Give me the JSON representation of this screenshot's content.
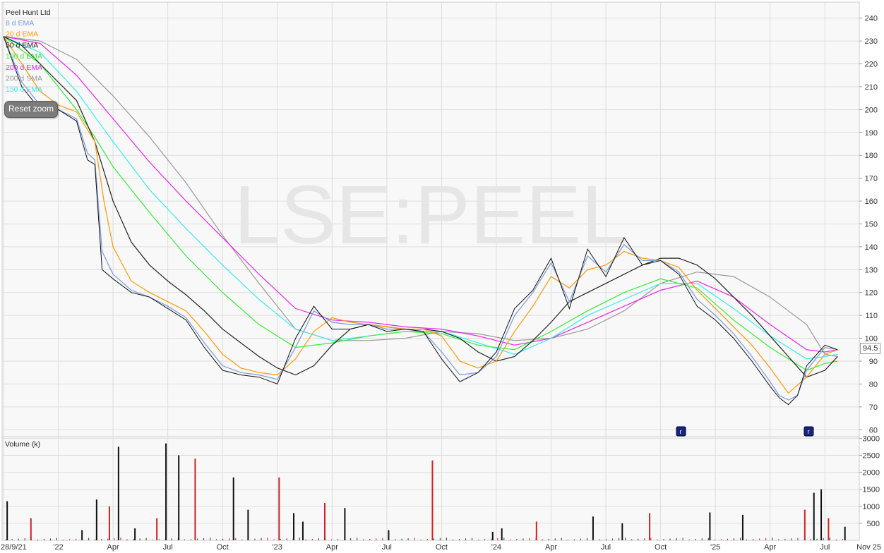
{
  "chart_data": {
    "type": "line",
    "title": "Peel Hunt Ltd",
    "watermark": "LSE:PEEL",
    "price_axis": {
      "ticks": [
        60,
        70,
        80,
        90,
        100,
        110,
        120,
        130,
        140,
        150,
        160,
        170,
        180,
        190,
        200,
        210,
        220,
        230,
        240
      ],
      "ylim": [
        57,
        247
      ]
    },
    "volume_axis": {
      "label": "Volume (k)",
      "ticks": [
        500,
        1000,
        1500,
        2000,
        2500,
        3000
      ],
      "ylim": [
        0,
        3050
      ]
    },
    "x_ticks": [
      "28/9/21",
      "'22",
      "Apr",
      "Jul",
      "Oct",
      "'23",
      "Apr",
      "Jul",
      "Oct",
      "'24",
      "Apr",
      "Jul",
      "Oct",
      "'25",
      "Apr",
      "Jul",
      "Nov 25"
    ],
    "last_price_label": "94.5",
    "event_markers": [
      {
        "date": "2024-11",
        "label": "r"
      },
      {
        "date": "2025-06",
        "label": "r"
      }
    ],
    "legend": [
      {
        "name": "8 d EMA",
        "color": "#7799dd"
      },
      {
        "name": "20 d EMA",
        "color": "#ff9900"
      },
      {
        "name": "50 d EMA",
        "color": "#222222"
      },
      {
        "name": "100 d EMA",
        "color": "#33ee33"
      },
      {
        "name": "200 d EMA",
        "color": "#ee22ee"
      },
      {
        "name": "200 d SMA",
        "color": "#999999"
      },
      {
        "name": "150 d EMA",
        "color": "#33eeee"
      }
    ],
    "x_months": [
      0,
      3,
      6,
      9,
      12,
      15,
      18,
      21,
      24,
      27,
      30,
      33,
      36,
      39,
      42,
      45,
      48.5
    ],
    "price": {
      "x": [
        0,
        1,
        2,
        3,
        4,
        4.6,
        5,
        5.4,
        6,
        7,
        8,
        9,
        10,
        11,
        12,
        13,
        14,
        15,
        16,
        17,
        18,
        19,
        20,
        21,
        22,
        23,
        24,
        25,
        26,
        27,
        28,
        29,
        30,
        31,
        32,
        33,
        34,
        35,
        36,
        37,
        38,
        39,
        40,
        41,
        42,
        42.5,
        43,
        43.5,
        44,
        45,
        45.7
      ],
      "y": [
        232,
        210,
        200,
        200,
        195,
        178,
        176,
        130,
        126,
        120,
        118,
        113,
        108,
        96,
        86,
        84,
        83,
        80,
        100,
        114,
        104,
        104,
        106,
        103,
        104,
        103,
        91,
        81,
        85,
        94,
        113,
        121,
        135,
        113,
        139,
        127,
        144,
        132,
        134,
        128,
        114,
        108,
        100,
        90,
        79,
        74,
        71,
        75,
        88,
        97,
        95
      ]
    },
    "ema8": {
      "x": [
        0,
        1,
        2,
        3,
        4,
        4.6,
        5,
        5.4,
        6,
        7,
        8,
        9,
        10,
        11,
        12,
        13,
        14,
        15,
        16,
        17,
        18,
        19,
        20,
        21,
        22,
        23,
        24,
        25,
        26,
        27,
        28,
        29,
        30,
        31,
        32,
        33,
        34,
        35,
        36,
        37,
        38,
        39,
        40,
        41,
        42,
        42.5,
        43,
        43.5,
        44,
        45,
        45.7
      ],
      "y": [
        232,
        212,
        202,
        200,
        196,
        181,
        178,
        138,
        128,
        121,
        118,
        114,
        109,
        98,
        88,
        85,
        84,
        82,
        96,
        112,
        107,
        106,
        106,
        104,
        104,
        103,
        94,
        84,
        85,
        92,
        110,
        120,
        133,
        116,
        136,
        129,
        141,
        134,
        134,
        129,
        117,
        110,
        102,
        92,
        81,
        75,
        73,
        75,
        86,
        96,
        95
      ]
    },
    "ema20": {
      "x": [
        0,
        1,
        2,
        3,
        4,
        5,
        5.5,
        6,
        7,
        8,
        9,
        10,
        11,
        12,
        13,
        14,
        15,
        16,
        17,
        18,
        19,
        20,
        21,
        22,
        23,
        24,
        25,
        26,
        27,
        28,
        29,
        30,
        31,
        32,
        33,
        34,
        35,
        36,
        37,
        38,
        39,
        40,
        41,
        42,
        43,
        44,
        45,
        45.7
      ],
      "y": [
        232,
        220,
        208,
        202,
        199,
        186,
        160,
        140,
        125,
        120,
        116,
        112,
        103,
        93,
        87,
        85,
        84,
        91,
        103,
        109,
        107,
        106,
        105,
        104,
        104,
        101,
        90,
        87,
        90,
        103,
        114,
        127,
        122,
        130,
        132,
        138,
        135,
        134,
        131,
        121,
        113,
        105,
        97,
        87,
        76,
        83,
        93,
        95
      ]
    },
    "ema50": {
      "x": [
        0,
        1,
        2,
        3,
        4,
        5,
        6,
        7,
        8,
        9,
        10,
        11,
        12,
        13,
        14,
        15,
        16,
        17,
        18,
        19,
        20,
        21,
        22,
        23,
        24,
        25,
        26,
        27,
        28,
        29,
        30,
        31,
        32,
        33,
        34,
        35,
        36,
        37,
        38,
        39,
        40,
        41,
        42,
        43,
        44,
        45,
        45.7
      ],
      "y": [
        232,
        228,
        220,
        212,
        204,
        186,
        160,
        142,
        132,
        125,
        119,
        112,
        104,
        98,
        92,
        87,
        84,
        88,
        97,
        104,
        106,
        105,
        104,
        104,
        103,
        100,
        94,
        90,
        92,
        99,
        107,
        116,
        120,
        124,
        128,
        132,
        135,
        135,
        132,
        126,
        118,
        110,
        101,
        92,
        83,
        86,
        92
      ]
    },
    "ema100": {
      "x": [
        0,
        2,
        4,
        5,
        6,
        8,
        10,
        12,
        14,
        16,
        18,
        20,
        22,
        24,
        26,
        28,
        30,
        32,
        34,
        36,
        38,
        40,
        42,
        44,
        45,
        45.7
      ],
      "y": [
        232,
        220,
        200,
        188,
        175,
        155,
        136,
        120,
        106,
        96,
        98,
        101,
        103,
        102,
        97,
        95,
        103,
        112,
        120,
        126,
        122,
        108,
        96,
        86,
        89,
        90
      ]
    },
    "ema150": {
      "x": [
        0,
        2,
        4,
        6,
        8,
        10,
        12,
        14,
        16,
        18,
        20,
        22,
        24,
        26,
        28,
        30,
        32,
        34,
        36,
        38,
        40,
        42,
        44,
        45,
        45.7
      ],
      "y": [
        232,
        225,
        208,
        186,
        165,
        148,
        132,
        117,
        104,
        99,
        101,
        103,
        103,
        98,
        93,
        100,
        110,
        117,
        124,
        124,
        113,
        101,
        91,
        92,
        93
      ]
    },
    "ema200": {
      "x": [
        0,
        2,
        4,
        6,
        8,
        10,
        12,
        14,
        16,
        18,
        20,
        22,
        24,
        26,
        28,
        30,
        32,
        34,
        36,
        38,
        40,
        42,
        44,
        45,
        45.7
      ],
      "y": [
        232,
        229,
        215,
        196,
        177,
        160,
        144,
        128,
        113,
        108,
        107,
        105,
        104,
        101,
        97,
        100,
        107,
        114,
        121,
        125,
        118,
        106,
        95,
        94,
        95
      ]
    },
    "sma200": {
      "x": [
        0,
        2,
        4,
        6,
        8,
        10,
        12,
        14,
        16,
        18,
        20,
        22,
        24,
        26,
        28,
        30,
        32,
        34,
        36,
        38,
        40,
        42,
        43,
        44,
        45,
        45.7
      ],
      "y": [
        232,
        230,
        222,
        206,
        188,
        168,
        145,
        124,
        104,
        99,
        99,
        100,
        103,
        102,
        99,
        100,
        104,
        112,
        124,
        129,
        127,
        118,
        112,
        106,
        93,
        92
      ]
    },
    "volume": {
      "x": [
        0.2,
        1.5,
        4.3,
        5.1,
        5.8,
        6.3,
        7.2,
        8.4,
        8.9,
        9.6,
        10.5,
        12.6,
        13.4,
        15.1,
        15.9,
        16.4,
        17.6,
        18.7,
        21.1,
        23.5,
        26.8,
        27.3,
        29.2,
        32.3,
        33.9,
        35.4,
        38.7,
        40.5,
        43.9,
        44.4,
        44.8,
        45.2,
        46.1
      ],
      "y": [
        1150,
        650,
        300,
        1200,
        1000,
        2750,
        350,
        650,
        2850,
        2500,
        2400,
        1850,
        900,
        1850,
        800,
        550,
        1100,
        950,
        300,
        2350,
        250,
        350,
        550,
        700,
        500,
        800,
        820,
        750,
        900,
        1400,
        1500,
        650,
        400
      ]
    }
  }
}
